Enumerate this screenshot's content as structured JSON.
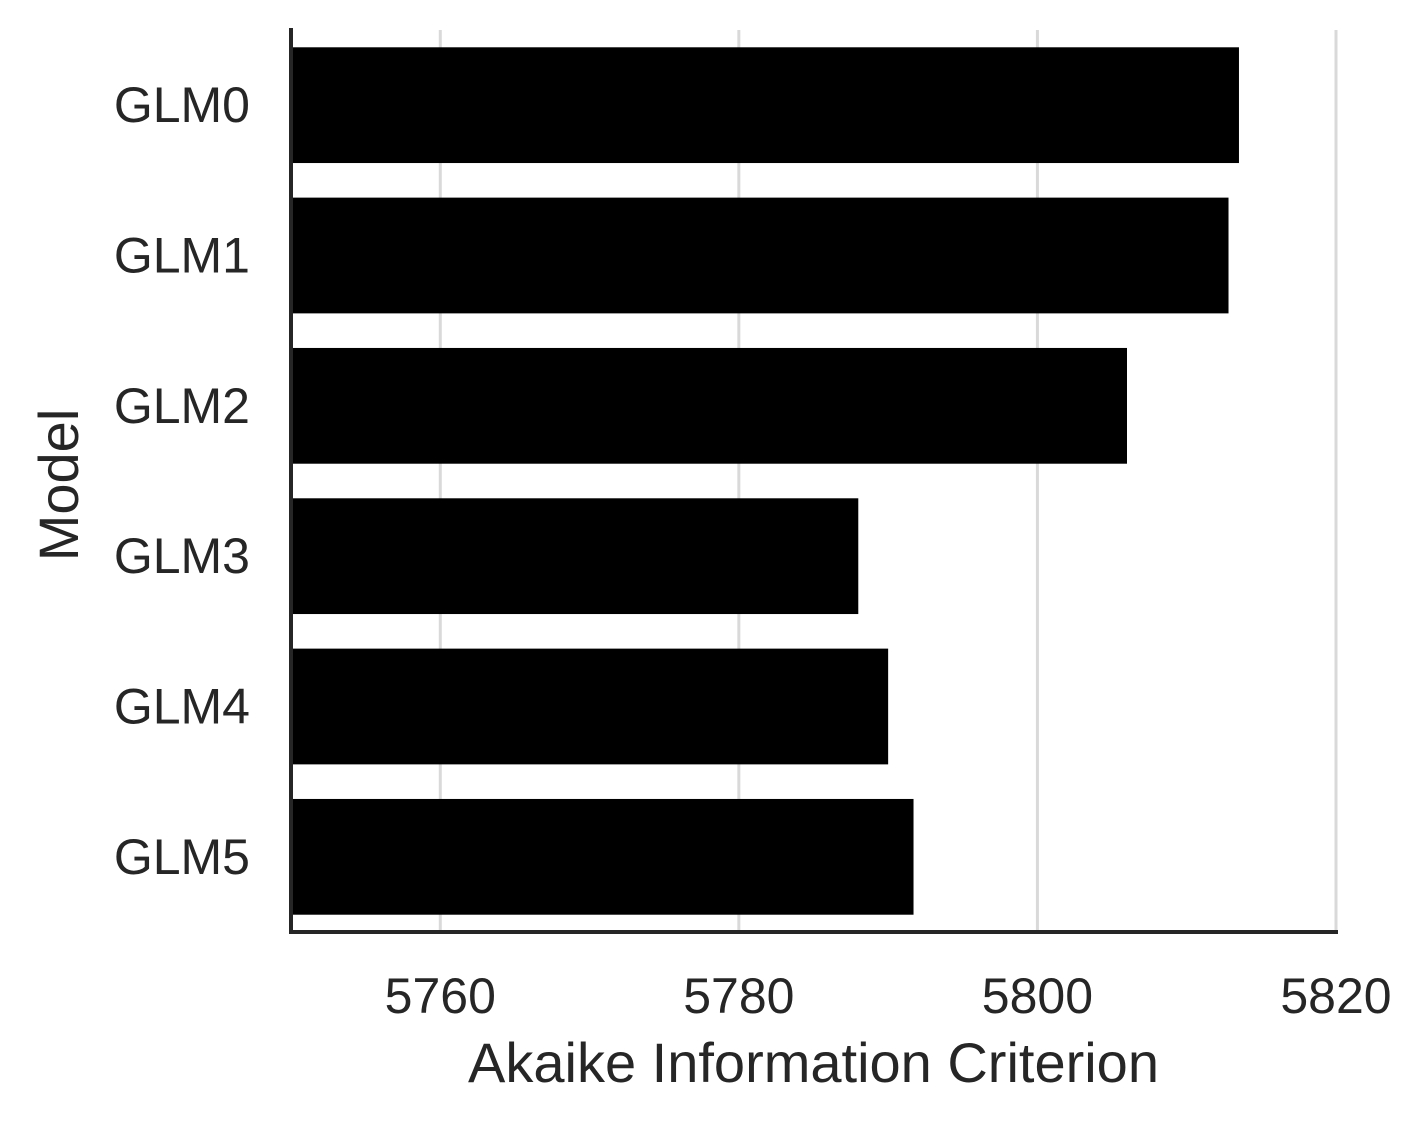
{
  "chart_data": {
    "type": "bar",
    "orientation": "horizontal",
    "title": "",
    "xlabel": "Akaike Information Criterion",
    "ylabel": "Model",
    "categories": [
      "GLM0",
      "GLM1",
      "GLM2",
      "GLM3",
      "GLM4",
      "GLM5"
    ],
    "values": [
      5813.5,
      5812.8,
      5806.0,
      5788.0,
      5790.0,
      5791.7
    ],
    "xlim": [
      5750,
      5820
    ],
    "xticks": [
      5760,
      5780,
      5800,
      5820
    ],
    "xtick_labels": [
      "5760",
      "5780",
      "5800",
      "5820"
    ],
    "grid": "vertical",
    "colors": {
      "bar": "#000000",
      "grid": "#d9d9d9",
      "axis": "#262626",
      "text": "#262626"
    }
  }
}
